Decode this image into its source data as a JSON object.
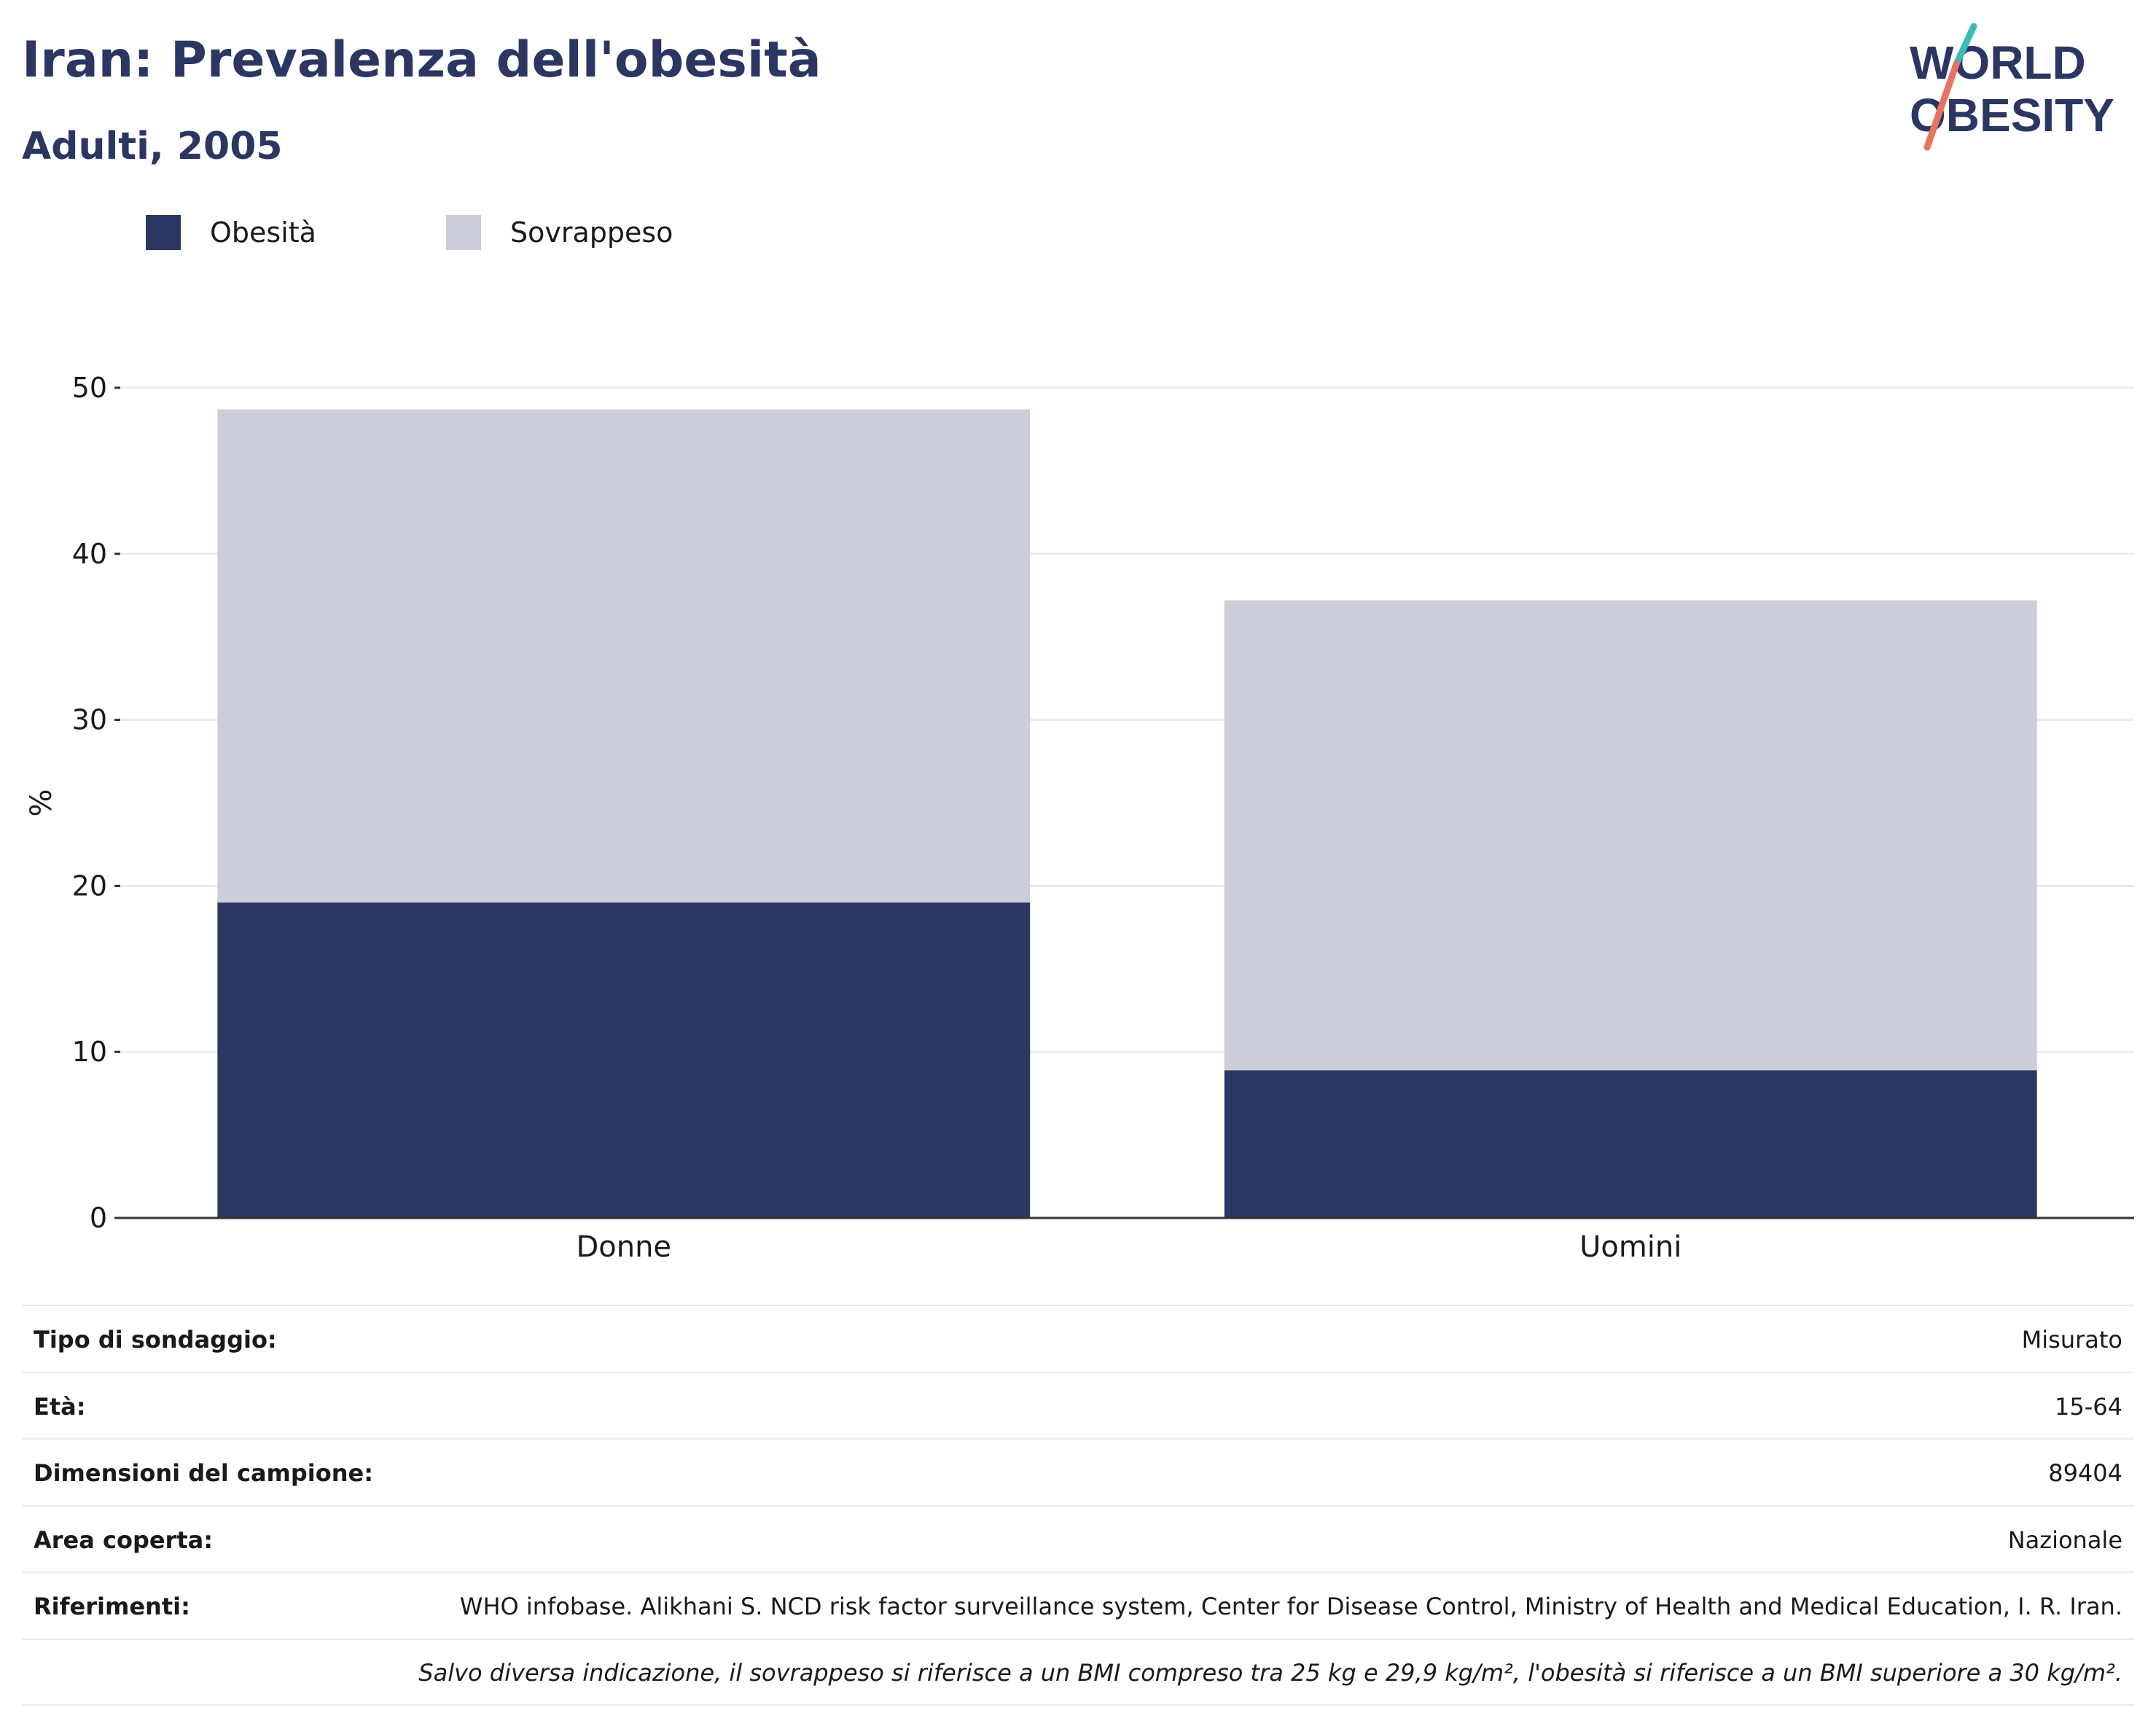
{
  "header": {
    "title": "Iran: Prevalenza dell'obesità",
    "subtitle": "Adulti, 2005"
  },
  "logo": {
    "line1": "WORLD",
    "line2": "OBESITY"
  },
  "colors": {
    "obesity": "#2b3663",
    "overweight": "#cbcdd8",
    "title": "#2b3663",
    "accent_teal": "#3cbcb4",
    "accent_coral": "#e8735e"
  },
  "chart_data": {
    "type": "bar",
    "stacked": true,
    "categories": [
      "Donne",
      "Uomini"
    ],
    "series": [
      {
        "name": "Obesità",
        "values": [
          19.0,
          8.9
        ],
        "color": "#2b3663"
      },
      {
        "name": "Sovrappeso",
        "values": [
          29.7,
          28.3
        ],
        "color": "#cbcdd8"
      }
    ],
    "ylabel": "%",
    "ylim": [
      0,
      50
    ],
    "yticks": [
      0,
      10,
      20,
      30,
      40,
      50
    ],
    "grid": true,
    "legend_position": "top-left"
  },
  "info": {
    "rows": [
      {
        "label": "Tipo di sondaggio:",
        "value": "Misurato"
      },
      {
        "label": "Età:",
        "value": "15-64"
      },
      {
        "label": "Dimensioni del campione:",
        "value": "89404"
      },
      {
        "label": "Area coperta:",
        "value": "Nazionale"
      },
      {
        "label": "Riferimenti:",
        "value": "WHO infobase. Alikhani S. NCD risk factor surveillance system, Center for Disease Control, Ministry of Health and Medical Education, I. R. Iran."
      }
    ],
    "note": "Salvo diversa indicazione, il sovrappeso si riferisce a un BMI compreso tra 25 kg e 29,9 kg/m², l'obesità si riferisce a un BMI superiore a 30 kg/m²."
  }
}
